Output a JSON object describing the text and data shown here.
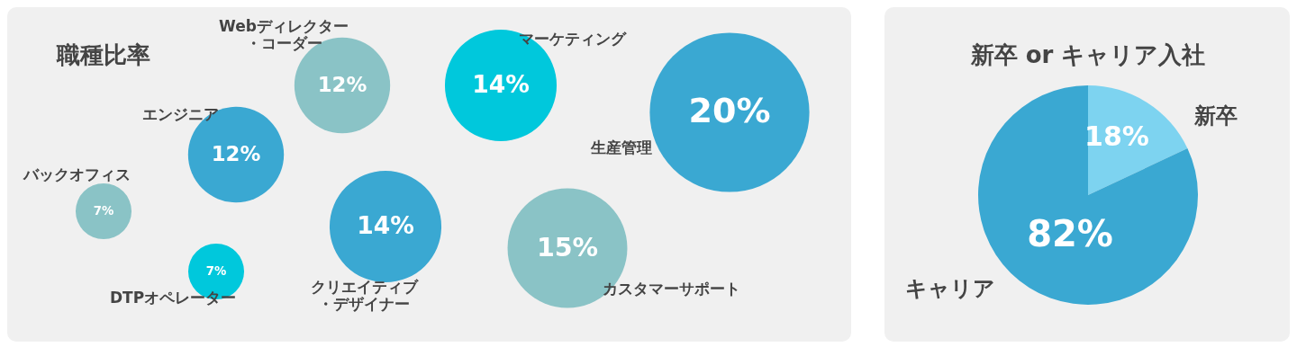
{
  "chart_data": [
    {
      "type": "other",
      "title": "職種比率",
      "categories": [
        "Webディレクター・コーダー",
        "マーケティング",
        "生産管理",
        "エンジニア",
        "バックオフィス",
        "DTPオペレーター",
        "クリエイティブ・デザイナー",
        "カスタマーサポート"
      ],
      "values": [
        12,
        14,
        20,
        12,
        7,
        7,
        14,
        15
      ],
      "value_labels": [
        "12%",
        "14%",
        "20%",
        "12%",
        "7%",
        "7%",
        "14%",
        "15%"
      ],
      "colors": [
        "#8ac3c6",
        "#00c8dc",
        "#3aa8d2",
        "#3aa8d2",
        "#8ac3c6",
        "#00c8dc",
        "#3aa8d2",
        "#8ac3c6"
      ]
    },
    {
      "type": "pie",
      "title": "新卒 or キャリア入社",
      "categories": [
        "新卒",
        "キャリア"
      ],
      "values": [
        18,
        82
      ],
      "value_labels": [
        "18%",
        "82%"
      ],
      "colors": [
        "#7dd3f0",
        "#3aa8d2"
      ]
    }
  ]
}
